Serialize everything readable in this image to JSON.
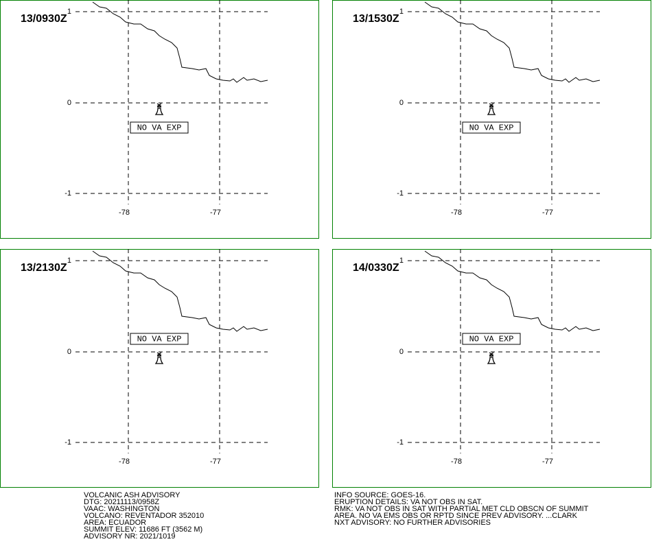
{
  "panels": [
    {
      "time": "13/0930Z",
      "lat_labels": [
        "1",
        "0",
        "-1"
      ],
      "lon_labels": [
        "-78",
        "-77"
      ],
      "box": "NO VA EXP"
    },
    {
      "time": "13/1530Z",
      "lat_labels": [
        "1",
        "0",
        "-1"
      ],
      "lon_labels": [
        "-78",
        "-77"
      ],
      "box": "NO VA EXP"
    },
    {
      "time": "13/2130Z",
      "lat_labels": [
        "1",
        "0",
        "-1"
      ],
      "lon_labels": [
        "-78",
        "-77"
      ],
      "box": "NO VA EXP"
    },
    {
      "time": "14/0330Z",
      "lat_labels": [
        "1",
        "0",
        "-1"
      ],
      "lon_labels": [
        "-78",
        "-77"
      ],
      "box": "NO VA EXP"
    }
  ],
  "footer": {
    "left": [
      "VOLCANIC ASH ADVISORY",
      "DTG: 20211113/0958Z",
      "VAAC: WASHINGTON",
      "VOLCANO: REVENTADOR 352010",
      "AREA: ECUADOR",
      "SUMMIT ELEV: 11686 FT (3562 M)",
      "ADVISORY NR: 2021/1019"
    ],
    "right": [
      "INFO SOURCE: GOES-16.",
      "ERUPTION DETAILS: VA NOT OBS IN SAT.",
      "RMK: VA NOT OBS IN SAT WITH PARTIAL MET CLD OBSCN OF SUMMIT",
      "AREA. NO VA EMS OBS OR RPTD SINCE PREV ADVISORY. ...CLARK",
      "NXT ADVISORY: NO FURTHER ADVISORIES"
    ]
  }
}
